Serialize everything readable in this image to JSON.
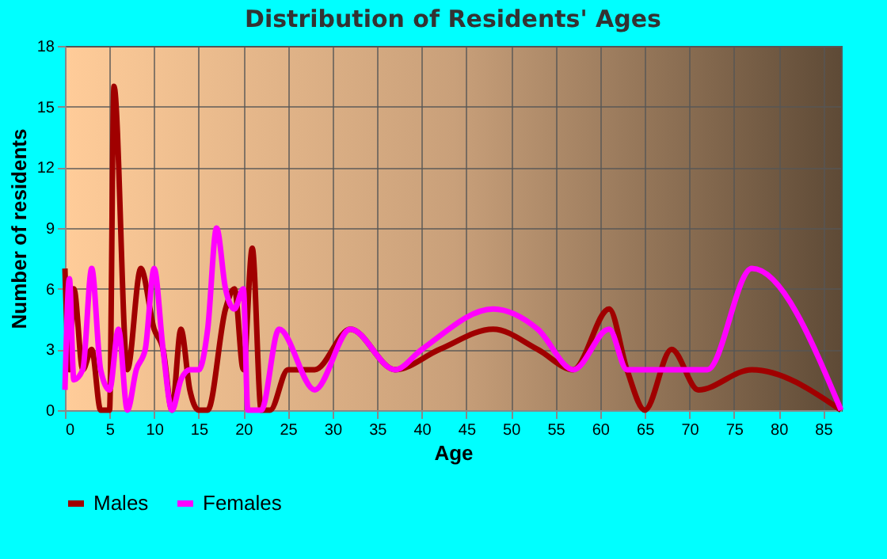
{
  "chart_data": {
    "type": "line",
    "title": "Distribution of Residents' Ages",
    "xlabel": "Age",
    "ylabel": "Number of residents",
    "xlim": [
      0,
      87
    ],
    "xticks": [
      0,
      5,
      10,
      15,
      20,
      25,
      30,
      35,
      40,
      45,
      50,
      55,
      60,
      65,
      70,
      75,
      80,
      85
    ],
    "ylim": [
      0,
      18
    ],
    "yticks": [
      0,
      3,
      6,
      9,
      12,
      15,
      18
    ],
    "grid": true,
    "legend": "bottom",
    "marker": "none",
    "line_style": "solid",
    "series": [
      {
        "name": "Males",
        "color": "#a00000",
        "x": [
          0,
          0.5,
          1,
          2,
          3,
          4,
          5,
          5.5,
          7,
          8.5,
          10,
          11,
          12,
          13,
          14,
          15,
          16,
          18,
          19,
          20,
          21,
          22,
          23,
          25,
          28,
          32,
          37,
          42,
          48,
          53,
          57,
          61,
          63,
          65,
          68,
          71,
          77,
          87
        ],
        "values": [
          7,
          2,
          6,
          2,
          3,
          0,
          0,
          16,
          2,
          7,
          4,
          3,
          0,
          4,
          1,
          0,
          0,
          5,
          6,
          2,
          8,
          0,
          0,
          2,
          2,
          4,
          2,
          3,
          4,
          3,
          2,
          5,
          2,
          0,
          3,
          1,
          2,
          0
        ]
      },
      {
        "name": "Females",
        "color": "#ff00ff",
        "x": [
          0,
          0.5,
          1,
          2,
          3,
          4,
          5,
          6,
          7,
          8,
          9,
          10,
          11,
          12,
          13,
          14,
          15,
          16,
          17,
          18,
          19,
          20,
          20.5,
          22,
          24,
          28,
          32,
          37,
          40,
          48,
          53,
          57,
          61,
          63,
          68,
          72,
          77,
          87
        ],
        "values": [
          1,
          6.5,
          1.5,
          2,
          7,
          2,
          1,
          4,
          0,
          2,
          3,
          7,
          3,
          0,
          1.5,
          2,
          2,
          4,
          9,
          6,
          5,
          6,
          0,
          0,
          4,
          1,
          4,
          2,
          3,
          5,
          4,
          2,
          4,
          2,
          2,
          2,
          7,
          0
        ]
      }
    ]
  }
}
